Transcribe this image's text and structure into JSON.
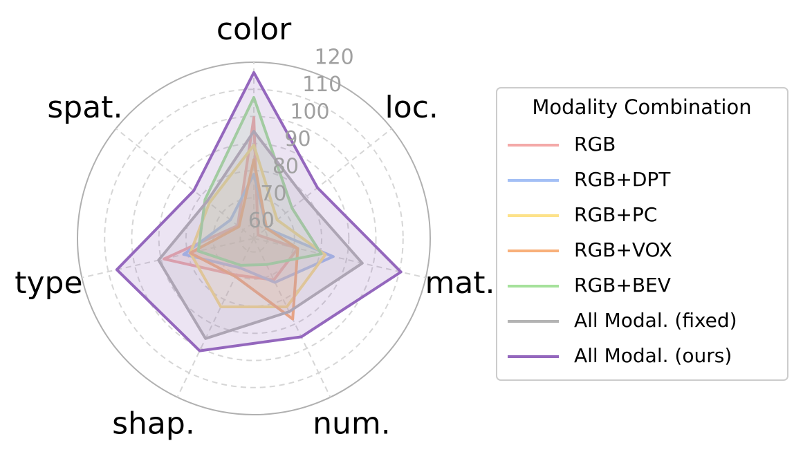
{
  "chart_data": {
    "type": "radar",
    "categories": [
      "color",
      "loc.",
      "mat.",
      "num.",
      "shap.",
      "type",
      "spat."
    ],
    "ylim": [
      55,
      120
    ],
    "yticks": [
      60,
      70,
      80,
      90,
      100,
      110,
      120
    ],
    "legend_title": "Modality Combination",
    "legend_position": "right",
    "series": [
      {
        "name": "RGB",
        "color": "#f4a9a8",
        "values": [
          99.6,
          57,
          71.6,
          72,
          70,
          89,
          62.6
        ]
      },
      {
        "name": "RGB+DPT",
        "color": "#a3bff5",
        "values": [
          78.7,
          61,
          85,
          73,
          67,
          81.5,
          66
        ]
      },
      {
        "name": "RGB+PC",
        "color": "#fde28a",
        "values": [
          89.4,
          66,
          82,
          83,
          83,
          79,
          76
        ]
      },
      {
        "name": "RGB+VOX",
        "color": "#f8b07a",
        "values": [
          84,
          61,
          71.6,
          88,
          70.6,
          79,
          62
        ]
      },
      {
        "name": "RGB+BEV",
        "color": "#a5e19b",
        "values": [
          107,
          73,
          80.5,
          65.7,
          66,
          76,
          78
        ]
      },
      {
        "name": "All Modal. (fixed)",
        "color": "#b3b3b3",
        "values": [
          94.5,
          79,
          96,
          85,
          96,
          91,
          77
        ]
      },
      {
        "name": "All Modal. (ours)",
        "color": "#9467bd",
        "values": [
          116.2,
          85,
          110.6,
          95.3,
          101,
          106.8,
          83.3
        ]
      }
    ]
  }
}
